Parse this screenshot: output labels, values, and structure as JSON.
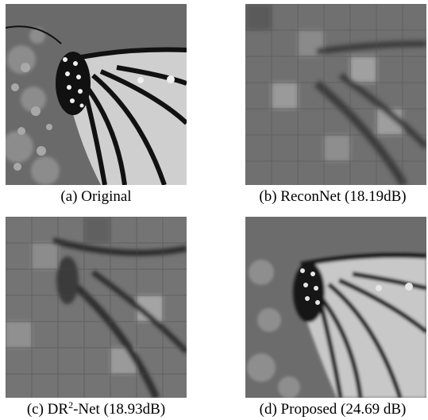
{
  "figure": {
    "panels": [
      {
        "id": "a",
        "caption": "(a) Original",
        "image_kind": "original-butterfly",
        "blockiness": 0
      },
      {
        "id": "b",
        "caption": "(b) ReconNet (18.19dB)",
        "image_kind": "reconnet-reconstruction",
        "blockiness": 1
      },
      {
        "id": "c",
        "caption_prefix": "(c) DR",
        "caption_sup": "2",
        "caption_suffix": "-Net (18.93dB)",
        "image_kind": "dr2net-reconstruction",
        "blockiness": 0.8
      },
      {
        "id": "d",
        "caption": "(d) Proposed (24.69 dB)",
        "image_kind": "proposed-reconstruction",
        "blockiness": 0
      }
    ]
  }
}
